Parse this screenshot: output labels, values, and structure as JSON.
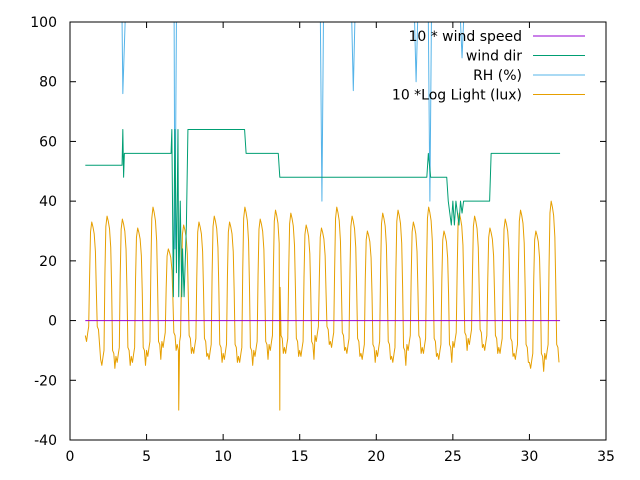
{
  "chart_data": {
    "type": "line",
    "title": "",
    "xlabel": "",
    "ylabel": "",
    "xlim": [
      0,
      35
    ],
    "ylim": [
      -40,
      100
    ],
    "x_ticks": [
      0,
      5,
      10,
      15,
      20,
      25,
      30,
      35
    ],
    "y_ticks": [
      -40,
      -20,
      0,
      20,
      40,
      60,
      80,
      100
    ],
    "grid": false,
    "legend_position": "top-right",
    "series": [
      {
        "name": "10 * wind speed",
        "color": "#9400d3",
        "points": [
          [
            1.0,
            0
          ],
          [
            32.0,
            0
          ]
        ]
      },
      {
        "name": "wind dir",
        "color": "#009e73",
        "points": [
          [
            1.0,
            52
          ],
          [
            3.4,
            52
          ],
          [
            3.45,
            64
          ],
          [
            3.5,
            48
          ],
          [
            3.55,
            56
          ],
          [
            6.6,
            56
          ],
          [
            6.65,
            64
          ],
          [
            6.75,
            8
          ],
          [
            6.85,
            64
          ],
          [
            6.95,
            16
          ],
          [
            7.05,
            64
          ],
          [
            7.1,
            8
          ],
          [
            7.2,
            40
          ],
          [
            7.3,
            8
          ],
          [
            7.35,
            24
          ],
          [
            7.45,
            8
          ],
          [
            7.5,
            16
          ],
          [
            7.6,
            32
          ],
          [
            7.7,
            64
          ],
          [
            11.4,
            64
          ],
          [
            11.5,
            56
          ],
          [
            13.6,
            56
          ],
          [
            13.7,
            48
          ],
          [
            23.3,
            48
          ],
          [
            23.4,
            56
          ],
          [
            23.55,
            48
          ],
          [
            24.6,
            48
          ],
          [
            24.7,
            40
          ],
          [
            24.8,
            36
          ],
          [
            24.9,
            32
          ],
          [
            25.0,
            40
          ],
          [
            25.1,
            32
          ],
          [
            25.2,
            40
          ],
          [
            25.4,
            32
          ],
          [
            25.5,
            40
          ],
          [
            25.6,
            36
          ],
          [
            25.7,
            40
          ],
          [
            27.4,
            40
          ],
          [
            27.5,
            56
          ],
          [
            32.0,
            56
          ]
        ]
      },
      {
        "name": "RH (%)",
        "color": "#56b4e9",
        "points": [
          [
            3.4,
            100
          ],
          [
            3.45,
            76
          ],
          [
            3.6,
            100
          ],
          [
            6.8,
            100
          ],
          [
            6.85,
            24
          ],
          [
            6.95,
            100
          ],
          [
            16.35,
            100
          ],
          [
            16.45,
            40
          ],
          [
            16.55,
            100
          ],
          [
            18.4,
            100
          ],
          [
            18.5,
            77
          ],
          [
            18.6,
            100
          ],
          [
            22.5,
            100
          ],
          [
            22.6,
            80
          ],
          [
            22.7,
            100
          ],
          [
            23.4,
            100
          ],
          [
            23.5,
            40
          ],
          [
            23.6,
            100
          ],
          [
            25.5,
            100
          ],
          [
            25.6,
            88
          ],
          [
            25.7,
            100
          ]
        ]
      },
      {
        "name": "10 *Log Light (lux)",
        "color": "#e69f00",
        "day_start": 1.0,
        "days": 31,
        "daily_peaks": [
          33,
          35,
          34,
          31,
          38,
          24,
          32,
          33,
          35,
          33,
          38,
          34,
          37,
          36,
          32,
          31,
          38,
          35,
          30,
          36,
          37,
          33,
          38,
          30,
          36,
          35,
          31,
          34,
          37,
          30,
          40
        ],
        "daily_troughs": [
          -6,
          -14,
          -13,
          -13,
          -11,
          -8,
          -9,
          -10,
          -12,
          -12,
          -13,
          -11,
          -9,
          -10,
          -11,
          -6,
          -8,
          -10,
          -12,
          -11,
          -13,
          -9,
          -10,
          -12,
          -8,
          -7,
          -9,
          -10,
          -12,
          -15,
          -12
        ],
        "spikes": [
          [
            7.1,
            -30
          ],
          [
            13.7,
            -30
          ]
        ]
      }
    ]
  }
}
